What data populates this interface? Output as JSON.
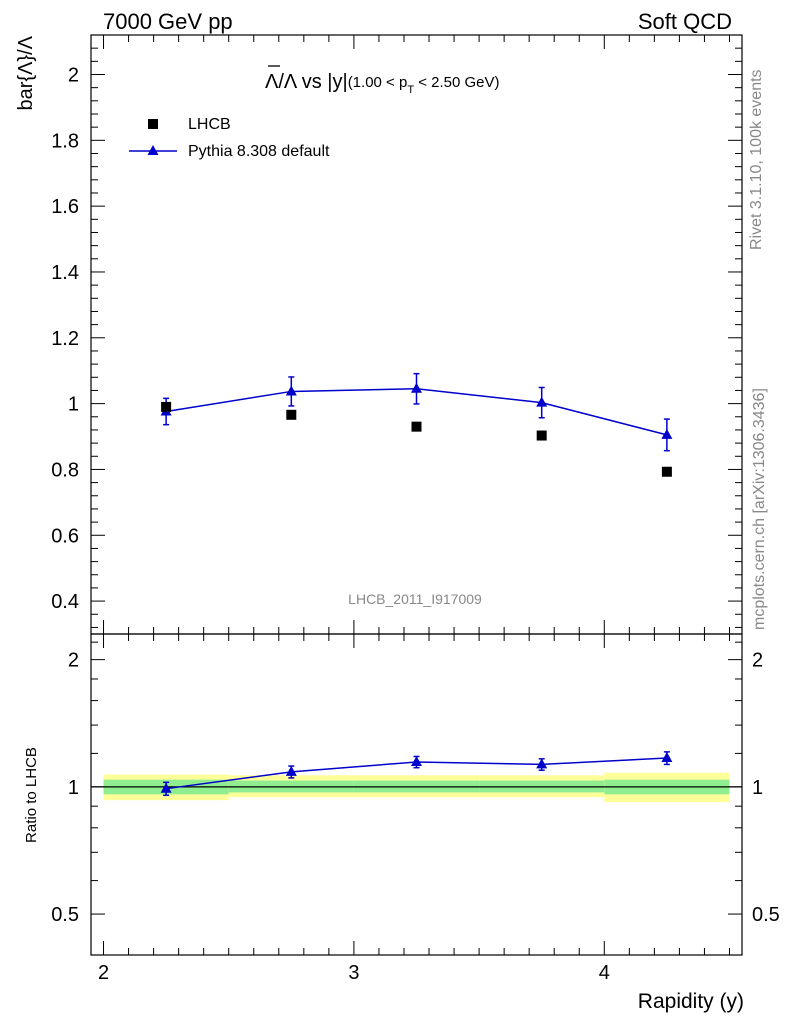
{
  "header": {
    "left": "7000 GeV pp",
    "right": "Soft QCD"
  },
  "side_labels": {
    "rivet": "Rivet 3.1.10,  100k events",
    "mcplots": "mcplots.cern.ch [arXiv:1306.3436]"
  },
  "colors": {
    "mc": "#0000cc",
    "data": "#000000",
    "band_inner": "#90ee90",
    "band_outer": "#ffff99"
  },
  "chart_data": [
    {
      "type": "scatter",
      "title_main": "Λ/Λ vs |y|",
      "title_cut_prefix": "(1.00 < p",
      "title_cut_sub": "T",
      "title_cut_suffix": " < 2.50 GeV)",
      "ylabel": "bar{Λ}/Λ",
      "watermark": "LHCB_2011_I917009",
      "xlim": [
        1.95,
        4.55
      ],
      "ylim": [
        0.3,
        2.12
      ],
      "yticks": [
        0.4,
        0.6,
        0.8,
        1,
        1.2,
        1.4,
        1.6,
        1.8,
        2
      ],
      "ytick_labels": [
        "0.4",
        "0.6",
        "0.8",
        "1",
        "1.2",
        "1.4",
        "1.6",
        "1.8",
        "2"
      ],
      "legend_position": "top-left",
      "series": [
        {
          "name": "LHCB",
          "marker": "square",
          "x": [
            2.25,
            2.75,
            3.25,
            3.75,
            4.25
          ],
          "y": [
            0.99,
            0.966,
            0.93,
            0.903,
            0.793
          ]
        },
        {
          "name": "Pythia 8.308 default",
          "marker": "triangle",
          "x": [
            2.25,
            2.75,
            3.25,
            3.75,
            4.25
          ],
          "y": [
            0.976,
            1.037,
            1.045,
            1.003,
            0.905
          ],
          "yerr": [
            0.04,
            0.044,
            0.046,
            0.046,
            0.048
          ]
        }
      ]
    },
    {
      "type": "scatter",
      "ylabel": "Ratio to LHCB",
      "xlabel": "Rapidity (y)",
      "xlim": [
        1.95,
        4.55
      ],
      "ylim": [
        0.4,
        2.3
      ],
      "log_y": true,
      "yticks": [
        0.5,
        1,
        2
      ],
      "ytick_labels": [
        "0.5",
        "1",
        "2"
      ],
      "xticks": [
        2,
        3,
        4
      ],
      "xtick_labels": [
        "2",
        "3",
        "4"
      ],
      "bands": {
        "x_edges": [
          2.0,
          2.5,
          3.0,
          3.5,
          4.0,
          4.5
        ],
        "inner": [
          [
            0.96,
            1.04
          ],
          [
            0.97,
            1.035
          ],
          [
            0.97,
            1.035
          ],
          [
            0.97,
            1.035
          ],
          [
            0.96,
            1.04
          ]
        ],
        "outer": [
          [
            0.93,
            1.07
          ],
          [
            0.945,
            1.065
          ],
          [
            0.945,
            1.065
          ],
          [
            0.945,
            1.065
          ],
          [
            0.92,
            1.08
          ]
        ]
      },
      "series": [
        {
          "name": "Pythia 8.308 default",
          "x": [
            2.25,
            2.75,
            3.25,
            3.75,
            4.25
          ],
          "y": [
            0.99,
            1.085,
            1.145,
            1.13,
            1.17
          ],
          "yerr": [
            0.035,
            0.035,
            0.035,
            0.035,
            0.04
          ]
        }
      ]
    }
  ]
}
